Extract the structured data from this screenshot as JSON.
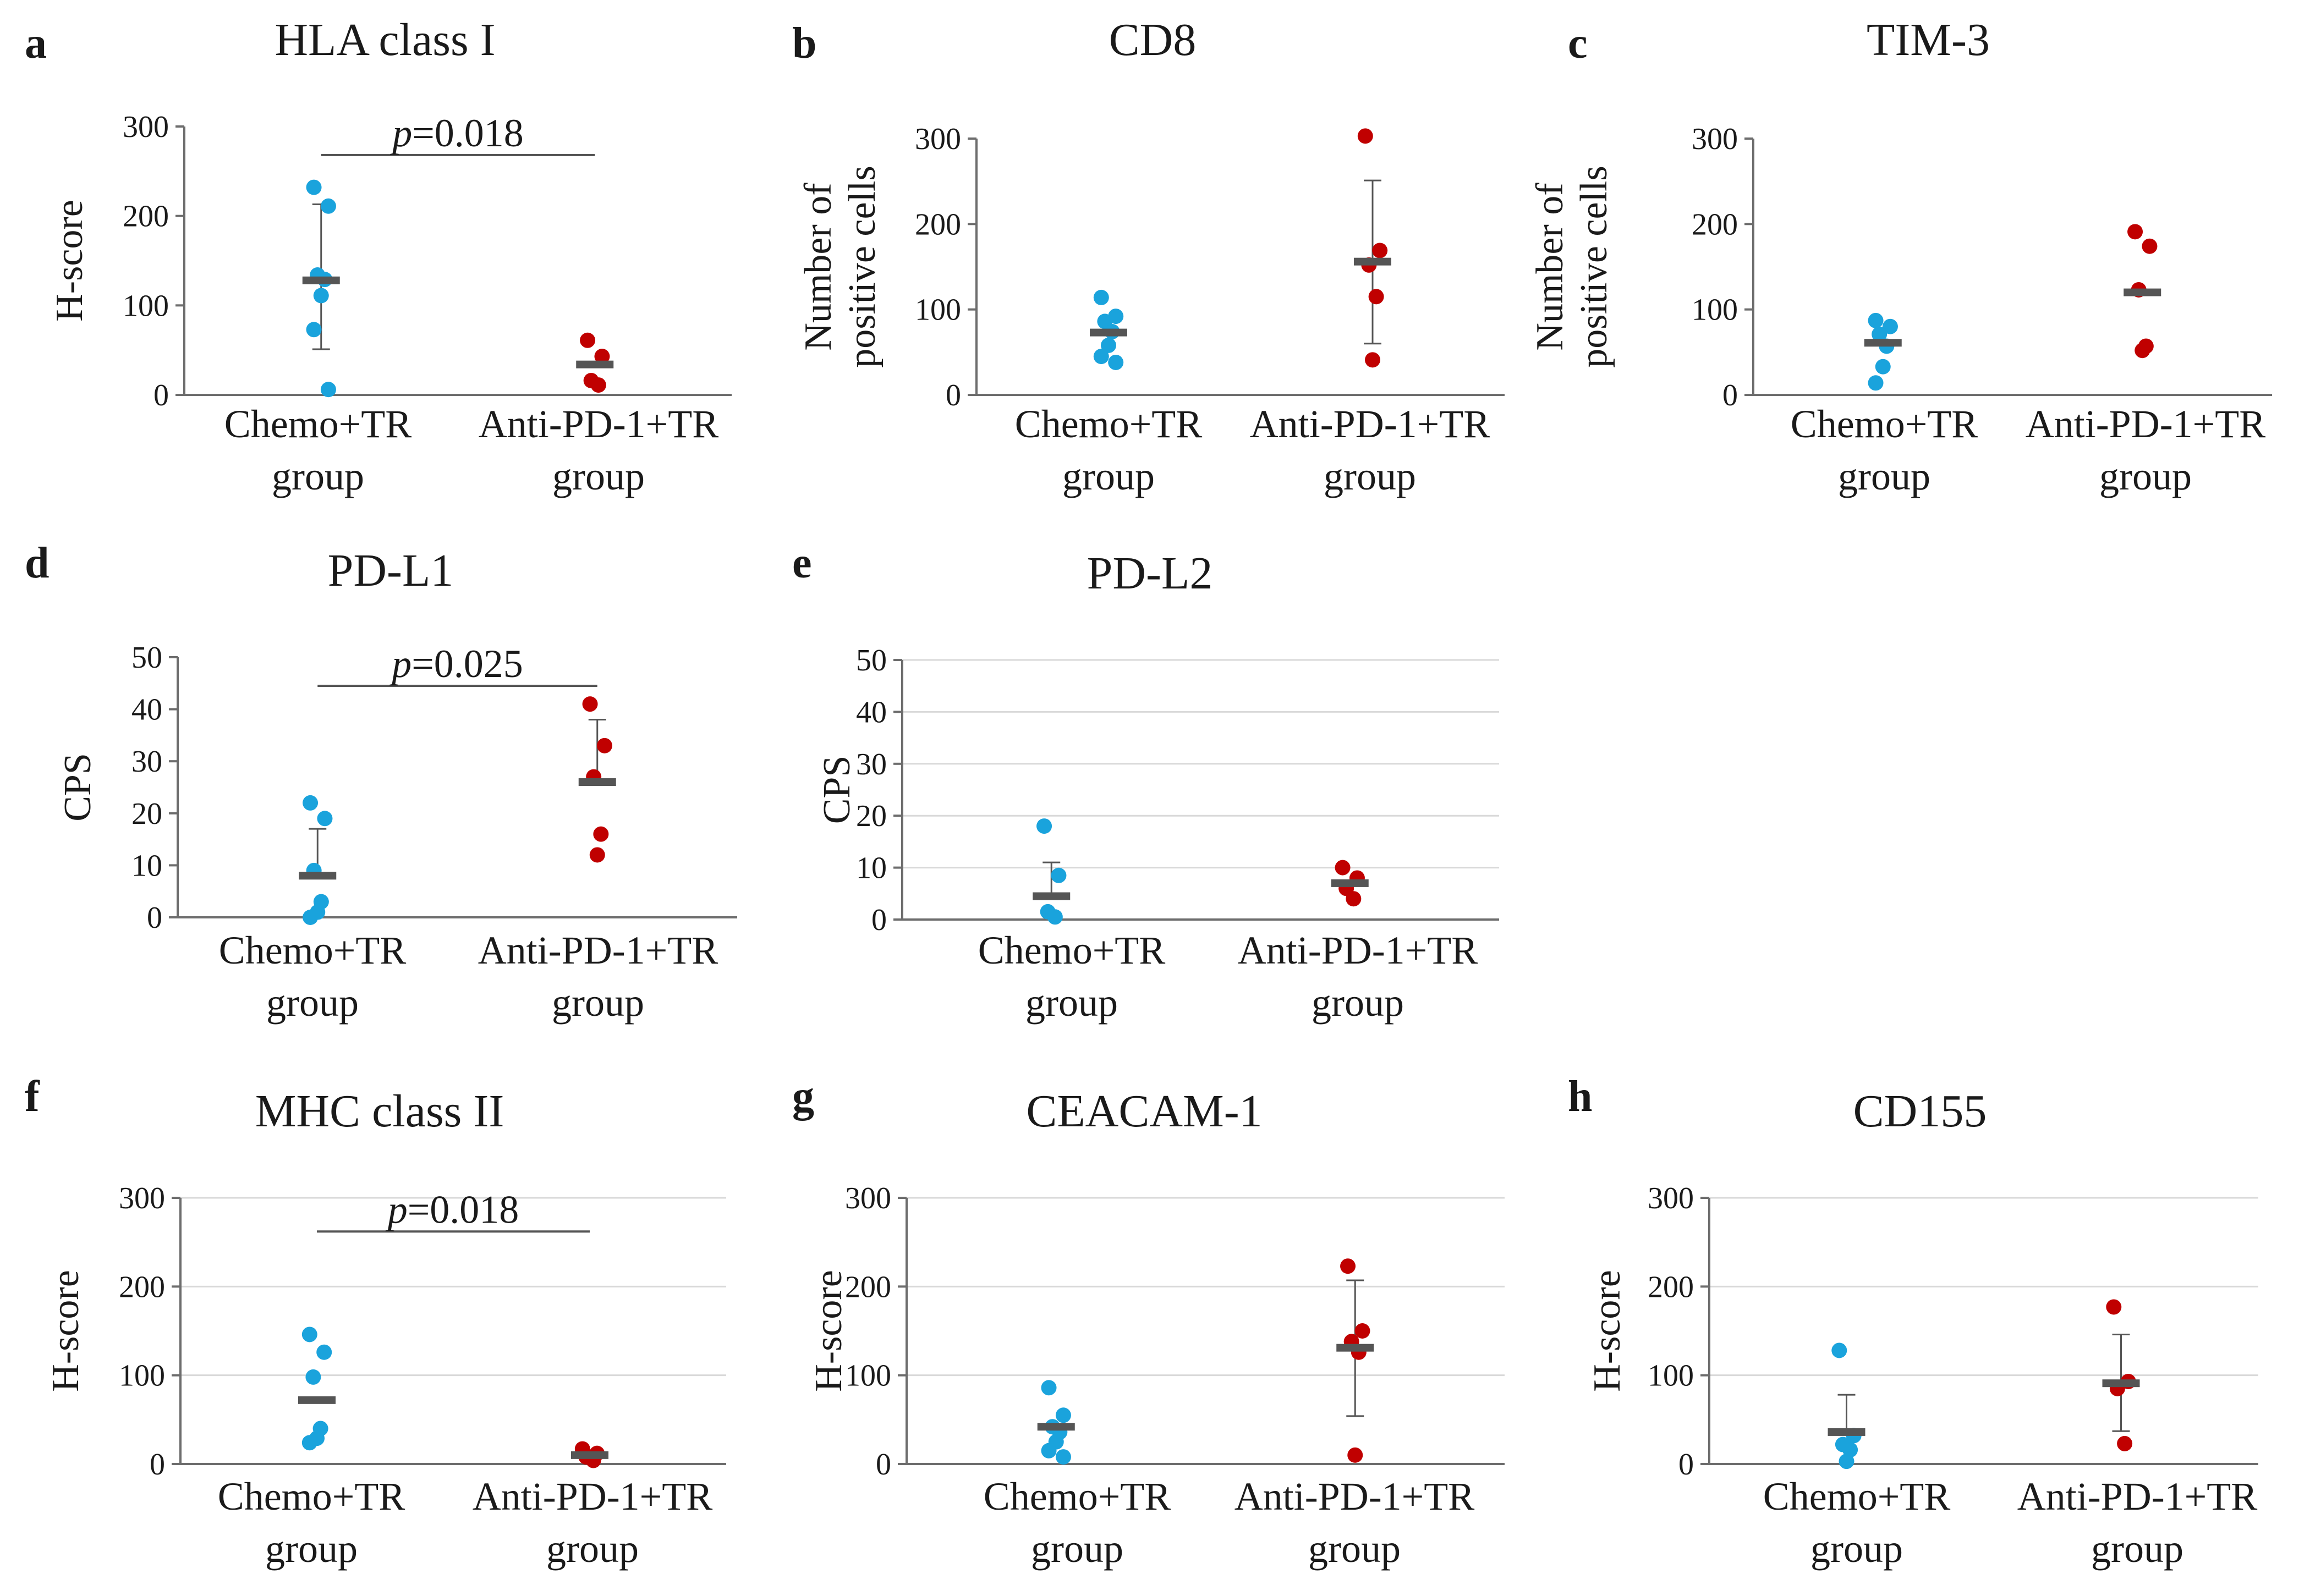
{
  "figure": {
    "panels": [
      "a",
      "b",
      "c",
      "d",
      "e",
      "f",
      "g",
      "h"
    ]
  },
  "style": {
    "chemo_color": "#1aa3dc",
    "anti_color": "#c00000",
    "mean_color": "#555555",
    "axis_color": "#6d6d6d",
    "grid_color": "#d9d9d9"
  },
  "chart_data": [
    {
      "letter": "a",
      "type": "scatter",
      "title": "HLA class I",
      "ylabel": [
        "H-score"
      ],
      "ylim": [
        0,
        300
      ],
      "yticks": [
        0,
        100,
        200,
        300
      ],
      "grid": false,
      "categories": [
        [
          "Chemo+TR",
          "group"
        ],
        [
          "Anti-PD-1+TR",
          "group"
        ]
      ],
      "series": [
        {
          "name": "Chemo+TR group",
          "points": [
            232,
            211,
            134,
            129,
            111,
            73,
            6
          ],
          "mean": 128,
          "sd_low": 51,
          "sd_high": 213
        },
        {
          "name": "Anti-PD-1+TR group",
          "points": [
            61,
            43,
            16,
            11
          ],
          "mean": 34,
          "sd_low": null,
          "sd_high": null
        }
      ],
      "pvalue": {
        "italic": "p",
        "rest": "=0.018",
        "y": 268
      }
    },
    {
      "letter": "b",
      "type": "scatter",
      "title": "CD8",
      "ylabel": [
        "Number of",
        "positive cells"
      ],
      "ylim": [
        0,
        300
      ],
      "yticks": [
        0,
        100,
        200,
        300
      ],
      "grid": false,
      "categories": [
        [
          "Chemo+TR",
          "group"
        ],
        [
          "Anti-PD-1+TR",
          "group"
        ]
      ],
      "series": [
        {
          "name": "Chemo+TR group",
          "points": [
            114,
            92,
            86,
            74,
            58,
            45,
            38
          ],
          "mean": 73,
          "sd_low": null,
          "sd_high": null
        },
        {
          "name": "Anti-PD-1+TR group",
          "points": [
            303,
            169,
            152,
            115,
            41
          ],
          "mean": 156,
          "sd_low": 60,
          "sd_high": 251
        }
      ],
      "pvalue": null
    },
    {
      "letter": "c",
      "type": "scatter",
      "title": "TIM-3",
      "ylabel": [
        "Number of",
        "positive cells"
      ],
      "ylim": [
        0,
        300
      ],
      "yticks": [
        0,
        100,
        200,
        300
      ],
      "grid": false,
      "categories": [
        [
          "Chemo+TR",
          "group"
        ],
        [
          "Anti-PD-1+TR",
          "group"
        ]
      ],
      "series": [
        {
          "name": "Chemo+TR group",
          "points": [
            87,
            80,
            71,
            57,
            33,
            14
          ],
          "mean": 61,
          "sd_low": null,
          "sd_high": null
        },
        {
          "name": "Anti-PD-1+TR group",
          "points": [
            191,
            174,
            123,
            57,
            52
          ],
          "mean": 120,
          "sd_low": null,
          "sd_high": null
        }
      ],
      "pvalue": null
    },
    {
      "letter": "d",
      "type": "scatter",
      "title": "PD-L1",
      "ylabel": [
        "CPS"
      ],
      "ylim": [
        0,
        50
      ],
      "yticks": [
        0,
        10,
        20,
        30,
        40,
        50
      ],
      "grid": false,
      "categories": [
        [
          "Chemo+TR",
          "group"
        ],
        [
          "Anti-PD-1+TR",
          "group"
        ]
      ],
      "series": [
        {
          "name": "Chemo+TR group",
          "points": [
            22,
            19,
            9,
            3,
            1,
            0
          ],
          "mean": 8,
          "sd_low": null,
          "sd_high": 17
        },
        {
          "name": "Anti-PD-1+TR group",
          "points": [
            41,
            33,
            27,
            16,
            12
          ],
          "mean": 26,
          "sd_low": null,
          "sd_high": 38
        }
      ],
      "pvalue": {
        "italic": "p",
        "rest": "=0.025",
        "y": 44.5
      }
    },
    {
      "letter": "e",
      "type": "scatter",
      "title": "PD-L2",
      "ylabel": [
        "CPS"
      ],
      "ylim": [
        0,
        50
      ],
      "yticks": [
        0,
        10,
        20,
        30,
        40,
        50
      ],
      "grid": true,
      "categories": [
        [
          "Chemo+TR",
          "group"
        ],
        [
          "Anti-PD-1+TR",
          "group"
        ]
      ],
      "series": [
        {
          "name": "Chemo+TR group",
          "points": [
            18,
            8.5,
            1.5,
            0.5
          ],
          "mean": 4.5,
          "sd_low": null,
          "sd_high": 11
        },
        {
          "name": "Anti-PD-1+TR group",
          "points": [
            10,
            8,
            6,
            4
          ],
          "mean": 7,
          "sd_low": null,
          "sd_high": null
        }
      ],
      "pvalue": null
    },
    {
      "letter": "f",
      "type": "scatter",
      "title": "MHC class II",
      "ylabel": [
        "H-score"
      ],
      "ylim": [
        0,
        300
      ],
      "yticks": [
        0,
        100,
        200,
        300
      ],
      "grid": true,
      "categories": [
        [
          "Chemo+TR",
          "group"
        ],
        [
          "Anti-PD-1+TR",
          "group"
        ]
      ],
      "series": [
        {
          "name": "Chemo+TR group",
          "points": [
            146,
            126,
            98,
            40,
            29,
            24
          ],
          "mean": 72,
          "sd_low": null,
          "sd_high": null
        },
        {
          "name": "Anti-PD-1+TR group",
          "points": [
            17,
            12,
            8,
            4
          ],
          "mean": 10,
          "sd_low": null,
          "sd_high": null
        }
      ],
      "pvalue": {
        "italic": "p",
        "rest": "=0.018",
        "y": 262
      }
    },
    {
      "letter": "g",
      "type": "scatter",
      "title": "CEACAM-1",
      "ylabel": [
        "H-score"
      ],
      "ylim": [
        0,
        300
      ],
      "yticks": [
        0,
        100,
        200,
        300
      ],
      "grid": true,
      "categories": [
        [
          "Chemo+TR",
          "group"
        ],
        [
          "Anti-PD-1+TR",
          "group"
        ]
      ],
      "series": [
        {
          "name": "Chemo+TR group",
          "points": [
            86,
            55,
            42,
            36,
            25,
            15,
            8
          ],
          "mean": 42,
          "sd_low": null,
          "sd_high": null
        },
        {
          "name": "Anti-PD-1+TR group",
          "points": [
            223,
            150,
            138,
            126,
            10
          ],
          "mean": 131,
          "sd_low": 54,
          "sd_high": 207
        }
      ],
      "pvalue": null
    },
    {
      "letter": "h",
      "type": "scatter",
      "title": "CD155",
      "ylabel": [
        "H-score"
      ],
      "ylim": [
        0,
        300
      ],
      "yticks": [
        0,
        100,
        200,
        300
      ],
      "grid": true,
      "categories": [
        [
          "Chemo+TR",
          "group"
        ],
        [
          "Anti-PD-1+TR",
          "group"
        ]
      ],
      "series": [
        {
          "name": "Chemo+TR group",
          "points": [
            128,
            32,
            22,
            16,
            3
          ],
          "mean": 36,
          "sd_low": null,
          "sd_high": 78
        },
        {
          "name": "Anti-PD-1+TR group",
          "points": [
            177,
            93,
            85,
            23
          ],
          "mean": 91,
          "sd_low": 37,
          "sd_high": 146
        }
      ],
      "pvalue": null
    }
  ]
}
